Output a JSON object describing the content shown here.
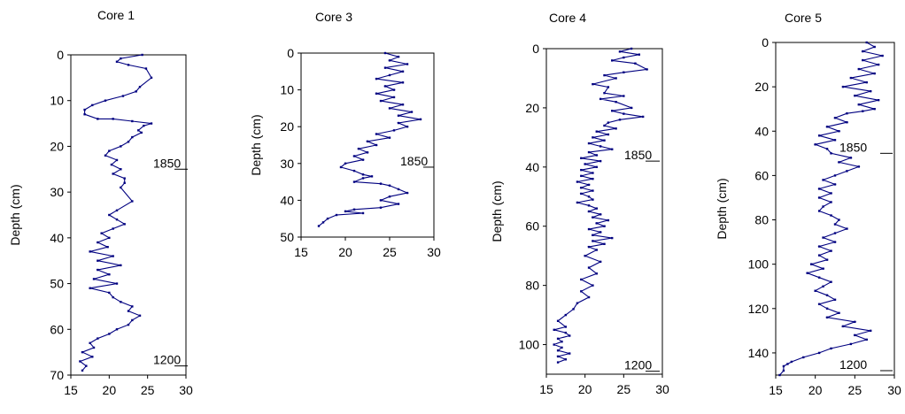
{
  "chart_data": [
    {
      "type": "line",
      "title": "Core 1",
      "ylabel": "Depth (cm)",
      "xlim": [
        15,
        30
      ],
      "ylim": [
        0,
        70
      ],
      "y_inverted": true,
      "xticks": [
        15,
        20,
        25,
        30
      ],
      "yticks": [
        0,
        10,
        20,
        30,
        40,
        50,
        60,
        70
      ],
      "annotations": [
        {
          "text": "1850",
          "depth": 25
        },
        {
          "text": "1200",
          "depth": 68
        }
      ],
      "series": [
        {
          "x": [
            24.3,
            21.5,
            21.0,
            22.5,
            24.8,
            25.5,
            24.0,
            23.5,
            21.8,
            19.5,
            17.8,
            16.8,
            16.8,
            18.5,
            20.5,
            23.0,
            25.5,
            24.5,
            23.8,
            24.2,
            23.0,
            22.5,
            21.5,
            20.0,
            19.5,
            21.0,
            20.3,
            21.5,
            20.5,
            22.0,
            22.0,
            21.5,
            23.0,
            21.0,
            20.0,
            21.0,
            22.0,
            20.5,
            19.0,
            20.0,
            18.5,
            19.8,
            17.5,
            20.5,
            18.5,
            21.5,
            18.5,
            20.0,
            18.0,
            21.0,
            17.5,
            20.0,
            20.5,
            21.5,
            23.0,
            22.5,
            24.0,
            23.0,
            22.5,
            21.0,
            20.0,
            18.5,
            17.5,
            18.0,
            16.5,
            17.8,
            16.2,
            17.0,
            16.5
          ],
          "y": [
            0,
            0.8,
            1.5,
            2.2,
            3,
            5,
            7,
            8,
            9,
            10,
            11,
            12,
            13,
            14,
            14,
            14.5,
            15,
            15.5,
            16.5,
            17,
            18,
            19,
            20,
            21,
            22,
            23,
            24,
            25,
            26,
            27,
            28,
            29,
            32,
            34,
            35,
            36,
            37,
            38,
            39,
            40,
            41,
            42,
            43,
            44,
            45,
            46,
            47,
            48,
            49,
            50,
            51,
            52,
            53,
            54,
            55,
            56,
            57,
            58,
            59,
            60,
            61,
            62,
            63,
            64,
            65,
            66,
            67,
            68,
            69
          ]
        }
      ]
    },
    {
      "type": "line",
      "title": "Core 3",
      "ylabel": "Depth (cm)",
      "xlim": [
        15,
        30
      ],
      "ylim": [
        0,
        50
      ],
      "y_inverted": true,
      "xticks": [
        15,
        20,
        25,
        30
      ],
      "yticks": [
        0,
        10,
        20,
        30,
        40,
        50
      ],
      "annotations": [
        {
          "text": "1850",
          "depth": 31
        }
      ],
      "series": [
        {
          "x": [
            24.5,
            26.0,
            25.0,
            27.0,
            24.5,
            26.5,
            25.0,
            23.5,
            26.5,
            24.5,
            25.5,
            23.5,
            25.5,
            24.0,
            26.5,
            25.0,
            27.5,
            26.0,
            28.5,
            26.0,
            27.0,
            25.5,
            23.5,
            25.0,
            22.5,
            23.5,
            21.5,
            22.5,
            21.0,
            22.0,
            20.0,
            19.5,
            21.0,
            22.0,
            23.0,
            22.0,
            21.0,
            24.0,
            25.0,
            26.0,
            27.0,
            25.0,
            24.0,
            26.0,
            24.0,
            21.0,
            20.0,
            22.0,
            19.0,
            18.0,
            17.5,
            17.0
          ],
          "y": [
            0,
            1,
            2,
            3,
            4,
            5,
            6,
            7,
            8,
            9,
            10,
            11,
            12,
            13,
            14,
            15,
            16,
            17,
            18,
            19,
            20,
            21,
            22,
            23,
            24,
            25,
            26,
            27,
            28,
            29,
            30,
            31,
            32,
            33,
            33.5,
            34,
            35,
            35.5,
            36,
            37,
            38,
            39,
            40,
            41,
            42,
            42.5,
            43,
            43.5,
            44,
            45,
            46,
            47
          ]
        }
      ]
    },
    {
      "type": "line",
      "title": "Core 4",
      "ylabel": "Depth (cm)",
      "xlim": [
        15,
        30
      ],
      "ylim": [
        0,
        110
      ],
      "y_inverted": true,
      "xticks": [
        15,
        20,
        25,
        30
      ],
      "yticks": [
        0,
        20,
        40,
        60,
        80,
        100
      ],
      "annotations": [
        {
          "text": "1850",
          "depth": 38
        },
        {
          "text": "1200",
          "depth": 109
        }
      ],
      "series": [
        {
          "x": [
            26.0,
            24.5,
            27.0,
            25.0,
            23.5,
            26.5,
            28.0,
            25.0,
            22.5,
            24.0,
            21.0,
            23.0,
            22.5,
            25.0,
            22.0,
            24.0,
            26.0,
            23.5,
            25.0,
            27.5,
            24.5,
            23.0,
            22.5,
            24.0,
            21.5,
            23.0,
            21.0,
            22.5,
            20.5,
            22.0,
            23.5,
            20.5,
            21.5,
            19.5,
            22.0,
            20.0,
            21.5,
            19.5,
            21.0,
            19.5,
            21.0,
            19.0,
            20.5,
            19.5,
            21.0,
            19.5,
            20.5,
            21.0,
            19.0,
            20.5,
            21.5,
            20.5,
            22.0,
            21.0,
            23.0,
            21.5,
            22.5,
            20.5,
            22.0,
            21.0,
            23.5,
            21.0,
            22.5,
            20.5,
            21.5,
            20.0,
            22.0,
            20.5,
            21.5,
            19.5,
            21.0,
            19.5,
            20.5,
            19.0,
            18.5,
            17.5,
            16.5,
            17.5,
            16.0,
            17.5,
            18.0,
            16.5,
            17.0,
            16.0,
            17.0,
            16.5,
            18.0,
            16.5,
            17.5,
            16.5
          ],
          "y": [
            0,
            1,
            2,
            3,
            4,
            5,
            7,
            8,
            9,
            10,
            12,
            13,
            15,
            16,
            17,
            18,
            20,
            21,
            22,
            23,
            24,
            25,
            26,
            27,
            28,
            29,
            30,
            31,
            32,
            33,
            34,
            35,
            36,
            37,
            38,
            39,
            40,
            41,
            42,
            43,
            44,
            45,
            46,
            47,
            48,
            49,
            50,
            51,
            52,
            53,
            54,
            55,
            56,
            57,
            58,
            59,
            60,
            61,
            62,
            63,
            64,
            65,
            66,
            67,
            68,
            70,
            72,
            74,
            76,
            78,
            80,
            82,
            84,
            86,
            88,
            90,
            92,
            94,
            95,
            96,
            97,
            98,
            99,
            100,
            101,
            102,
            103,
            104,
            105,
            106
          ]
        }
      ]
    },
    {
      "type": "line",
      "title": "Core 5",
      "ylabel": "Depth (cm)",
      "xlim": [
        15,
        30
      ],
      "ylim": [
        0,
        150
      ],
      "y_inverted": true,
      "xticks": [
        15,
        20,
        25,
        30
      ],
      "yticks": [
        0,
        20,
        40,
        60,
        80,
        100,
        120,
        140
      ],
      "annotations": [
        {
          "text": "1850",
          "depth": 50
        },
        {
          "text": "1200",
          "depth": 148
        }
      ],
      "series": [
        {
          "x": [
            26.5,
            27.5,
            26.0,
            28.5,
            26.0,
            28.0,
            25.5,
            27.5,
            24.5,
            26.5,
            23.5,
            27.0,
            25.0,
            28.0,
            25.5,
            27.5,
            26.0,
            24.0,
            22.5,
            24.0,
            21.5,
            23.0,
            20.5,
            22.5,
            20.0,
            21.5,
            22.0,
            24.5,
            23.0,
            25.5,
            24.0,
            22.5,
            21.0,
            22.5,
            20.5,
            22.0,
            20.5,
            22.0,
            21.0,
            20.5,
            22.0,
            23.0,
            22.5,
            24.0,
            22.5,
            21.0,
            22.5,
            20.5,
            22.0,
            20.5,
            21.5,
            19.5,
            21.0,
            19.0,
            20.5,
            22.0,
            21.0,
            20.0,
            21.5,
            22.5,
            20.5,
            21.5,
            23.0,
            21.5,
            25.0,
            23.5,
            27.0,
            25.0,
            26.5,
            24.5,
            22.0,
            20.5,
            18.5,
            17.0,
            16.5,
            16.0,
            16.0,
            15.5
          ],
          "y": [
            0,
            2,
            4,
            6,
            8,
            10,
            12,
            14,
            16,
            18,
            20,
            22,
            24,
            26,
            28,
            30,
            31,
            32,
            34,
            36,
            38,
            40,
            42,
            44,
            46,
            48,
            50,
            52,
            54,
            56,
            58,
            60,
            62,
            64,
            66,
            68,
            70,
            72,
            74,
            76,
            78,
            80,
            82,
            84,
            86,
            88,
            90,
            92,
            94,
            96,
            98,
            100,
            102,
            104,
            106,
            108,
            110,
            112,
            114,
            116,
            118,
            120,
            122,
            124,
            126,
            128,
            130,
            132,
            134,
            136,
            138,
            140,
            142,
            144,
            145,
            146,
            148,
            150
          ]
        }
      ]
    }
  ]
}
